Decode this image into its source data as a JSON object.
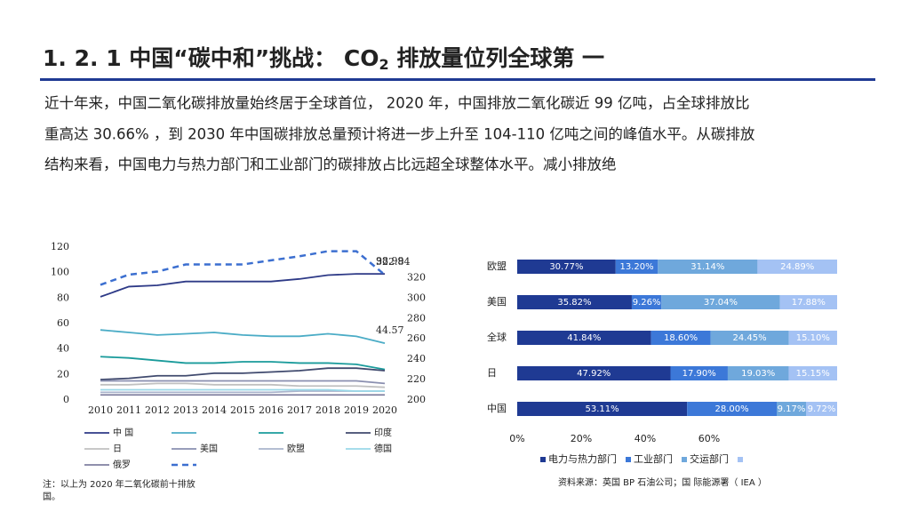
{
  "title": {
    "before": "1. 2. 1 中国“碳中和”挑战： CO",
    "sub": "2",
    "after": " 排放量位列全球第 一"
  },
  "paragraph": [
    "近十年来，中国二氧化碳排放量始终居于全球首位， 2020 年，中国排放二氧化碳近 99 亿吨，占全球排放比",
    "重高达 30.66% ，到 2030 年中国碳排放总量预计将进一步上升至 104-110 亿吨之间的峰值水平。从碳排放",
    "结构来看，中国电力与热力部门和工业部门的碳排放占比远超全球整体水平。减小排放绝"
  ],
  "note": [
    "注：以上为 2020 年二氧化碳前十排放",
    "国。"
  ],
  "source": "资料来源：英国 BP 石油公司；国 际能源署（ IEA ）",
  "chart_data": [
    {
      "type": "line",
      "x": [
        2010,
        2011,
        2012,
        2013,
        2014,
        2015,
        2016,
        2017,
        2018,
        2019,
        2020
      ],
      "xticks": [
        2010,
        2011,
        2012,
        2013,
        2014,
        2015,
        2016,
        2017,
        2018,
        2019,
        2020
      ],
      "xlim": [
        2010,
        2020
      ],
      "ylim": [
        0,
        120
      ],
      "yticks": [
        0,
        20,
        40,
        60,
        80,
        100,
        120
      ],
      "y2lim": [
        200,
        350
      ],
      "y2ticks": [
        200,
        220,
        240,
        260,
        280,
        300,
        320
      ],
      "series": [
        {
          "name": "中 国",
          "color": "#2e3a87",
          "label_last": true,
          "values": [
            81,
            89,
            90,
            93,
            93,
            93,
            93,
            95,
            98,
            99,
            98.99
          ]
        },
        {
          "color": "#4bacc6",
          "label_last": true,
          "values": [
            55,
            53,
            51,
            52,
            53,
            51,
            50,
            50,
            52,
            50,
            44.57
          ]
        },
        {
          "color": "#1a9b9b",
          "values": [
            34,
            33,
            31,
            29,
            29,
            30,
            30,
            29,
            29,
            28,
            24
          ]
        },
        {
          "name": "印度",
          "color": "#404a6e",
          "values": [
            16,
            17,
            19,
            19,
            21,
            21,
            22,
            23,
            25,
            25,
            23
          ]
        },
        {
          "name": "日",
          "color": "#c0c0c0",
          "values": [
            12,
            12,
            13,
            13,
            12,
            12,
            12,
            11,
            11,
            11,
            10
          ]
        },
        {
          "name": "美国",
          "color": "#8a8fb0",
          "values": [
            15,
            15,
            15,
            15,
            15,
            15,
            15,
            15,
            15,
            15,
            13
          ]
        },
        {
          "name": "欧盟",
          "color": "#aab4cc",
          "values": [
            6,
            6,
            6,
            6,
            6,
            6,
            6,
            7,
            7,
            7,
            7
          ]
        },
        {
          "name": "德国",
          "color": "#9ad8e8",
          "values": [
            8,
            8,
            8,
            8,
            8,
            8,
            8,
            8,
            8,
            7,
            7
          ]
        },
        {
          "name": "俄罗",
          "color": "#8080a0",
          "values": [
            4,
            4,
            4,
            4,
            4,
            4,
            4,
            4,
            4,
            4,
            4
          ]
        },
        {
          "color": "#3c6fd0",
          "dashed": true,
          "axis": "y2",
          "label_last": true,
          "values": [
            313,
            323,
            326,
            333,
            333,
            333,
            337,
            341,
            346,
            346,
            322.84
          ]
        }
      ]
    },
    {
      "type": "bar",
      "orientation": "horizontal",
      "stacked": true,
      "categories": [
        "欧盟",
        "美国",
        "全球",
        "日",
        "中国"
      ],
      "xlim": [
        0,
        100
      ],
      "xticks": [
        {
          "value": 0,
          "label": "0%"
        },
        {
          "value": 20,
          "label": "20%"
        },
        {
          "value": 40,
          "label": "40%"
        },
        {
          "value": 60,
          "label": "60%"
        }
      ],
      "series": [
        {
          "name": "电力与热力部门",
          "color": "#1f3a93",
          "values": [
            30.77,
            35.82,
            41.84,
            47.92,
            53.11
          ],
          "value_labels": [
            "30.77%",
            "35.82%",
            "41.84%",
            "47.92%",
            "53.11%"
          ]
        },
        {
          "name": "工业部门",
          "color": "#3c78d8",
          "values": [
            13.2,
            9.26,
            18.6,
            17.9,
            28.0
          ],
          "value_labels": [
            "13.20%",
            "9.26%",
            "18.60%",
            "17.90%",
            "28.00%"
          ]
        },
        {
          "name": "交运部门",
          "color": "#6fa8dc",
          "values": [
            31.14,
            37.04,
            24.45,
            19.03,
            9.17
          ],
          "value_labels": [
            "31.14%",
            "37.04%",
            "24.45%",
            "19.03%",
            "9.17%"
          ]
        },
        {
          "color": "#a4c2f4",
          "values": [
            24.89,
            17.88,
            15.1,
            15.15,
            9.72
          ],
          "value_labels": [
            "24.89%",
            "17.88%",
            "15.10%",
            "15.15%",
            "9.72%"
          ]
        }
      ]
    }
  ]
}
